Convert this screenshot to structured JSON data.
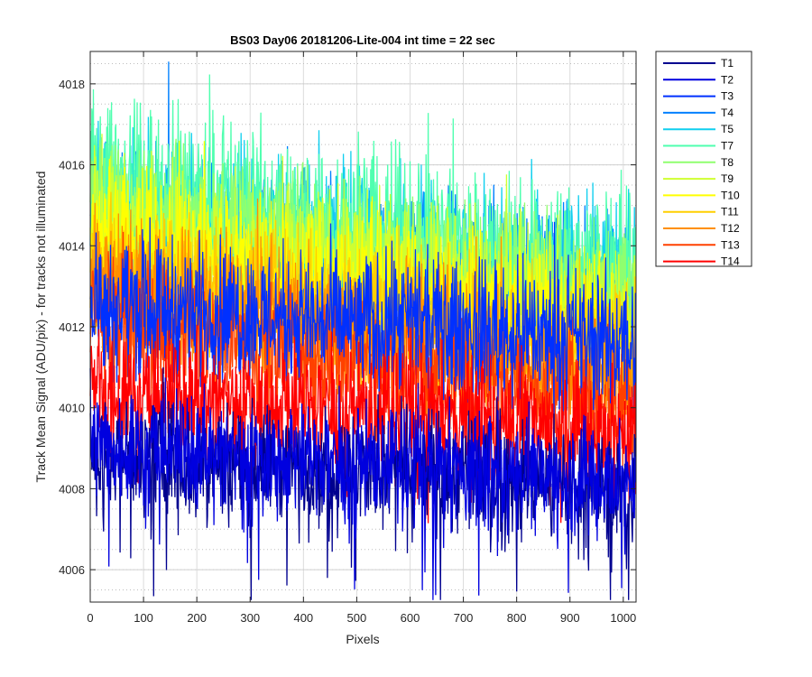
{
  "chart_data": {
    "type": "line",
    "title": "BS03 Day06 20181206-Lite-004 int time = 22 sec",
    "xlabel": "Pixels",
    "ylabel": "Track Mean Signal (ADU/pix) - for tracks not illuminated",
    "xlim": [
      0,
      1024
    ],
    "ylim": [
      4005.2,
      4018.8
    ],
    "xticks": [
      0,
      100,
      200,
      300,
      400,
      500,
      600,
      700,
      800,
      900,
      1000
    ],
    "yticks": [
      4006,
      4008,
      4010,
      4012,
      4014,
      4016,
      4018
    ],
    "grid": true,
    "minor_grid_y": true,
    "legend_position": "outside-top-right",
    "series": [
      {
        "name": "T1",
        "color": "#00008f",
        "mean_start": 4008.9,
        "mean_end": 4008.0,
        "amplitude": 1.1,
        "low_spikes": 2.8
      },
      {
        "name": "T2",
        "color": "#0000df",
        "mean_start": 4009.1,
        "mean_end": 4008.2,
        "amplitude": 1.1,
        "low_spikes": 2.6
      },
      {
        "name": "T3",
        "color": "#0030ff",
        "mean_start": 4012.6,
        "mean_end": 4011.6,
        "amplitude": 1.3,
        "low_spikes": 0
      },
      {
        "name": "T4",
        "color": "#0080ff",
        "mean_start": 4014.6,
        "mean_end": 4012.6,
        "amplitude": 1.4,
        "low_spikes": 0
      },
      {
        "name": "T5",
        "color": "#10cfef",
        "mean_start": 4015.0,
        "mean_end": 4013.0,
        "amplitude": 1.5,
        "low_spikes": 0
      },
      {
        "name": "T7",
        "color": "#4fffaf",
        "mean_start": 4015.7,
        "mean_end": 4013.2,
        "amplitude": 1.5,
        "low_spikes": 0
      },
      {
        "name": "T8",
        "color": "#8fff6f",
        "mean_start": 4015.0,
        "mean_end": 4012.8,
        "amplitude": 1.3,
        "low_spikes": 0
      },
      {
        "name": "T9",
        "color": "#cfff30",
        "mean_start": 4014.6,
        "mean_end": 4012.4,
        "amplitude": 1.3,
        "low_spikes": 0
      },
      {
        "name": "T10",
        "color": "#ffff00",
        "mean_start": 4014.2,
        "mean_end": 4011.8,
        "amplitude": 1.3,
        "low_spikes": 0
      },
      {
        "name": "T11",
        "color": "#ffcf00",
        "mean_start": 4013.6,
        "mean_end": 4011.3,
        "amplitude": 1.3,
        "low_spikes": 0
      },
      {
        "name": "T12",
        "color": "#ff8f00",
        "mean_start": 4013.0,
        "mean_end": 4010.8,
        "amplitude": 1.3,
        "low_spikes": 0
      },
      {
        "name": "T13",
        "color": "#ff4000",
        "mean_start": 4012.2,
        "mean_end": 4010.2,
        "amplitude": 1.3,
        "low_spikes": 0
      },
      {
        "name": "T14",
        "color": "#ff0000",
        "mean_start": 4010.4,
        "mean_end": 4009.4,
        "amplitude": 1.2,
        "low_spikes": 1.5
      }
    ]
  }
}
